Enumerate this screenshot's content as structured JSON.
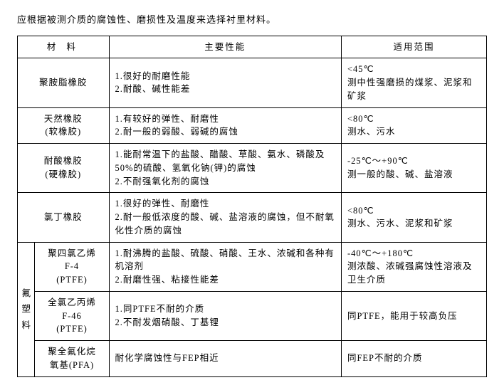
{
  "intro": "应根据被测介质的腐蚀性、磨损性及温度来选择衬里材料。",
  "header": {
    "material": "材 料",
    "performance": "主要性能",
    "scope": "适用范围"
  },
  "rows": [
    {
      "material": "聚胺脂橡胶",
      "perf1": "1.很好的耐磨性能",
      "perf2": "2.耐酸、碱性能差",
      "scope1": "<45℃",
      "scope2": "测中性强磨损的煤浆、泥浆和矿浆"
    },
    {
      "material": "天然橡胶",
      "material_sub": "(软橡胶)",
      "perf1": "1.有较好的弹性、耐磨性",
      "perf2": "2.耐一般的弱酸、弱碱的腐蚀",
      "scope1": "<80℃",
      "scope2": "测水、污水"
    },
    {
      "material": "耐酸橡胶",
      "material_sub": "(硬橡胶)",
      "perf1": "1.能耐常温下的盐酸、醋酸、草酸、氨水、磷酸及50%的硫酸、氢氧化钠(钾)的腐蚀",
      "perf2": "2.不耐强氧化剂的腐蚀",
      "scope1": "-25℃～+90℃",
      "scope2": "测一般的酸、碱、盐溶液"
    },
    {
      "material": "氯丁橡胶",
      "perf1": "1.很好的弹性、耐磨性",
      "perf2": "2.耐一般低浓度的酸、碱、盐溶液的腐蚀，但不耐氧化性介质的腐蚀",
      "scope1": "<80℃",
      "scope2": "测水、污水、泥浆和矿浆"
    }
  ],
  "fluoro_group": {
    "label": "氟塑料",
    "rows": [
      {
        "material": "聚四氯乙烯",
        "material_sub1": "F-4",
        "material_sub2": "(PTFE)",
        "perf1": "1.耐沸腾的盐酸、硫酸、硝酸、王水、浓碱和各种有机溶剂",
        "perf2": "2.耐磨性强、粘接性能差",
        "scope1": "-40℃～+180℃",
        "scope2": "测浓酸、浓碱强腐蚀性溶液及卫生介质"
      },
      {
        "material": "全氯乙丙烯",
        "material_sub1": "F-46",
        "material_sub2": "(PTFE)",
        "perf1": "1.同PTFE不耐的介质",
        "perf2": "2.不耐发烟硝酸、丁基锂",
        "scope1": "同PTFE，能用于较高负压"
      },
      {
        "material": "聚全氟化烷",
        "material_sub1": "氧基(PFA)",
        "perf1": "耐化学腐蚀性与FEP相近",
        "scope1": "同FEP不耐的介质"
      }
    ]
  }
}
